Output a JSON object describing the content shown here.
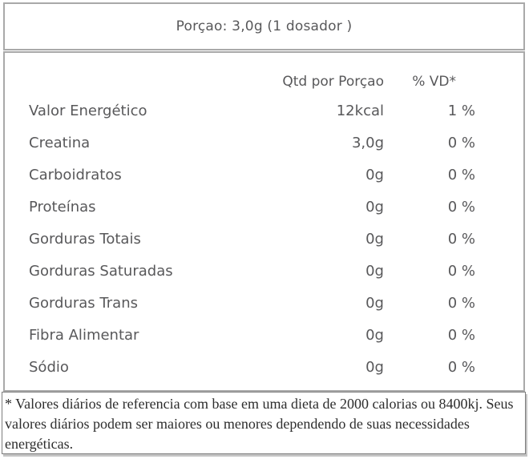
{
  "portion": {
    "text": "Porçao: 3,0g (1 dosador )"
  },
  "table": {
    "headers": {
      "qty": "Qtd por Porçao",
      "vd": "% VD*"
    },
    "rows": [
      {
        "label": "Valor Energético",
        "qty": "12kcal",
        "vd": "1 %"
      },
      {
        "label": "Creatina",
        "qty": "3,0g",
        "vd": "0 %"
      },
      {
        "label": "Carboidratos",
        "qty": "0g",
        "vd": "0 %"
      },
      {
        "label": "Proteínas",
        "qty": "0g",
        "vd": "0 %"
      },
      {
        "label": "Gorduras Totais",
        "qty": "0g",
        "vd": "0 %"
      },
      {
        "label": "Gorduras Saturadas",
        "qty": "0g",
        "vd": "0 %"
      },
      {
        "label": "Gorduras Trans",
        "qty": "0g",
        "vd": "0 %"
      },
      {
        "label": "Fibra Alimentar",
        "qty": "0g",
        "vd": "0 %"
      },
      {
        "label": "Sódio",
        "qty": "0g",
        "vd": "0 %"
      }
    ]
  },
  "footnote": {
    "text": "* Valores diários de referencia com base em uma dieta de 2000 calorias ou 8400kj. Seus valores diários podem ser maiores ou menores dependendo de suas necessidades energéticas."
  },
  "colors": {
    "border": "#a9a9a9",
    "footer_border": "#7d7d7d",
    "table_text": "#58585a",
    "footer_text": "#2d2d2d"
  }
}
